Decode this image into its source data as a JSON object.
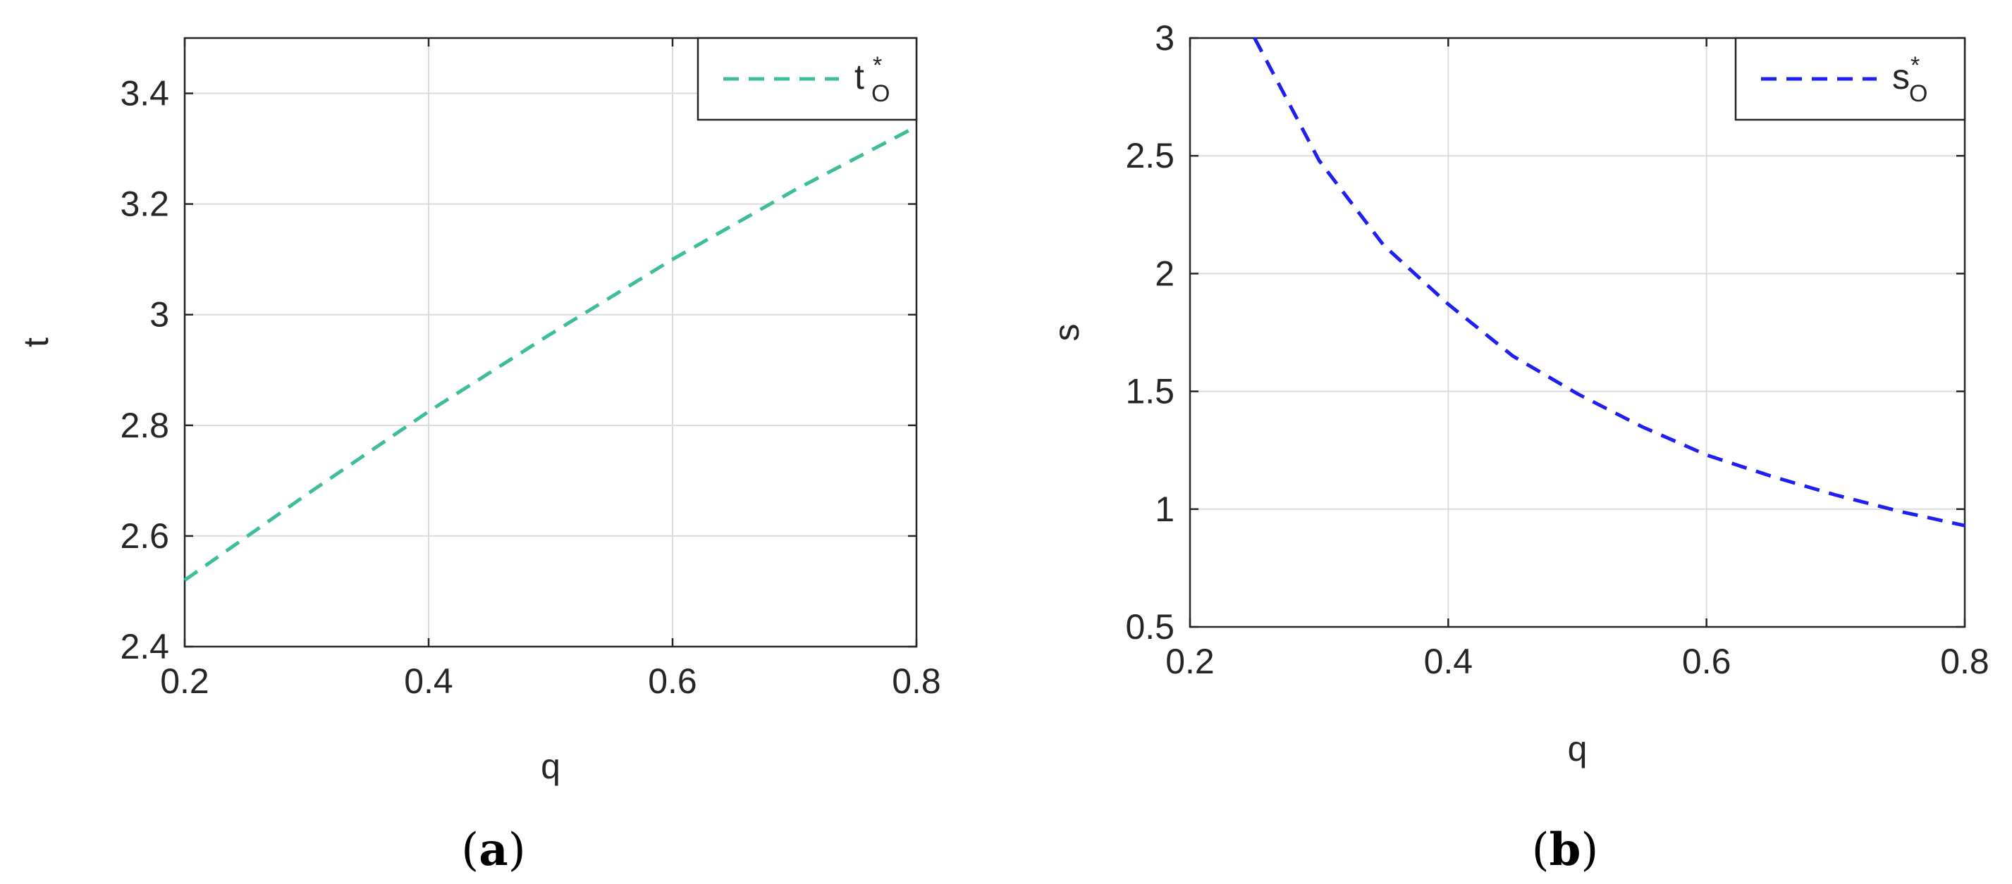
{
  "chart_data": [
    {
      "type": "line",
      "caption": {
        "open": "(",
        "letter": "a",
        "close": ")"
      },
      "xlabel": "q",
      "ylabel": "t",
      "xlim": [
        0.2,
        0.8
      ],
      "ylim": [
        2.4,
        3.5
      ],
      "xticks": [
        0.2,
        0.4,
        0.6,
        0.8
      ],
      "xtick_labels": [
        "0.2",
        "0.4",
        "0.6",
        "0.8"
      ],
      "yticks": [
        2.4,
        2.6,
        2.8,
        3.0,
        3.2,
        3.4
      ],
      "ytick_labels": [
        "2.4",
        "2.6",
        "2.8",
        "3",
        "3.2",
        "3.4"
      ],
      "grid": true,
      "legend_position": "top-right",
      "series": [
        {
          "name": "t",
          "name_sup": "*",
          "name_sub": "O",
          "color": "#3dbd9c",
          "line_style": "dashed",
          "x": [
            0.2,
            0.3,
            0.4,
            0.5,
            0.6,
            0.7,
            0.8
          ],
          "y": [
            2.52,
            2.675,
            2.825,
            2.965,
            3.1,
            3.225,
            3.34
          ]
        }
      ]
    },
    {
      "type": "line",
      "caption": {
        "open": "(",
        "letter": "b",
        "close": ")"
      },
      "xlabel": "q",
      "ylabel": "s",
      "xlim": [
        0.2,
        0.8
      ],
      "ylim": [
        0.5,
        3.0
      ],
      "xticks": [
        0.2,
        0.4,
        0.6,
        0.8
      ],
      "xtick_labels": [
        "0.2",
        "0.4",
        "0.6",
        "0.8"
      ],
      "yticks": [
        0.5,
        1.0,
        1.5,
        2.0,
        2.5,
        3.0
      ],
      "ytick_labels": [
        "0.5",
        "1",
        "1.5",
        "2",
        "2.5",
        "3"
      ],
      "grid": true,
      "legend_position": "top-right",
      "series": [
        {
          "name": "s",
          "name_sup": "*",
          "name_sub": "O",
          "color": "#1f1ff2",
          "line_style": "dashed",
          "x": [
            0.25,
            0.3,
            0.35,
            0.4,
            0.45,
            0.5,
            0.55,
            0.6,
            0.65,
            0.7,
            0.75,
            0.8
          ],
          "y": [
            3.0,
            2.48,
            2.12,
            1.87,
            1.65,
            1.49,
            1.35,
            1.23,
            1.14,
            1.06,
            0.99,
            0.93
          ]
        }
      ]
    }
  ]
}
